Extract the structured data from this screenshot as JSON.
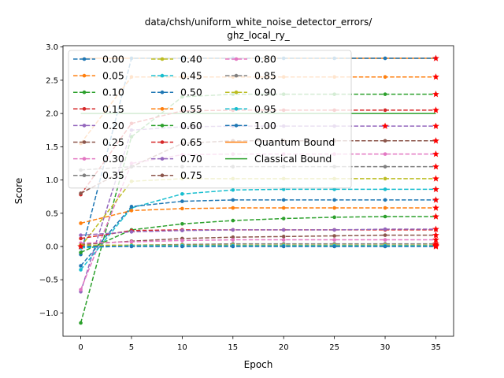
{
  "chart_data": {
    "type": "line",
    "title": "data/chsh/uniform_white_noise_detector_errors/\nghz_local_ry_",
    "xlabel": "Epoch",
    "ylabel": "Score",
    "xlim": [
      -1.75,
      36.75
    ],
    "ylim": [
      -1.35,
      3.02
    ],
    "xticks": [
      0,
      5,
      10,
      15,
      20,
      25,
      30,
      35
    ],
    "yticks": [
      -1.0,
      -0.5,
      0.0,
      0.5,
      1.0,
      1.5,
      2.0,
      2.5,
      3.0
    ],
    "x": [
      0,
      5,
      10,
      15,
      20,
      25,
      30,
      35
    ],
    "grid": false,
    "legend_position": "upper-left",
    "legend_columns": 3,
    "series": [
      {
        "name": "0.00",
        "color": "#1f77b4",
        "values": [
          -0.12,
          2.83,
          2.83,
          2.83,
          2.83,
          2.83,
          2.83,
          2.83
        ]
      },
      {
        "name": "0.05",
        "color": "#ff7f0e",
        "values": [
          1.55,
          2.55,
          2.55,
          2.55,
          2.55,
          2.55,
          2.55,
          2.55
        ]
      },
      {
        "name": "0.10",
        "color": "#2ca02c",
        "values": [
          -1.15,
          1.65,
          2.25,
          2.29,
          2.29,
          2.29,
          2.29,
          2.29
        ]
      },
      {
        "name": "0.15",
        "color": "#d62728",
        "values": [
          0.78,
          1.85,
          2.04,
          2.05,
          2.05,
          2.05,
          2.05,
          2.05
        ]
      },
      {
        "name": "0.20",
        "color": "#9467bd",
        "values": [
          -0.68,
          1.75,
          1.8,
          1.81,
          1.81,
          1.81,
          1.81,
          1.81
        ]
      },
      {
        "name": "0.25",
        "color": "#8c564b",
        "values": [
          0.8,
          1.2,
          1.55,
          1.59,
          1.59,
          1.59,
          1.59,
          1.59
        ]
      },
      {
        "name": "0.30",
        "color": "#e377c2",
        "values": [
          -0.65,
          1.25,
          1.38,
          1.39,
          1.39,
          1.39,
          1.39,
          1.39
        ]
      },
      {
        "name": "0.35",
        "color": "#7f7f7f",
        "values": [
          1.15,
          1.2,
          1.2,
          1.2,
          1.2,
          1.2,
          1.2,
          1.2
        ]
      },
      {
        "name": "0.40",
        "color": "#bcbd22",
        "values": [
          0.0,
          0.98,
          1.02,
          1.02,
          1.02,
          1.02,
          1.02,
          1.02
        ]
      },
      {
        "name": "0.45",
        "color": "#17becf",
        "values": [
          -0.35,
          0.58,
          0.79,
          0.85,
          0.86,
          0.86,
          0.86,
          0.86
        ]
      },
      {
        "name": "0.50",
        "color": "#1f77b4",
        "values": [
          -0.29,
          0.6,
          0.68,
          0.7,
          0.7,
          0.7,
          0.7,
          0.7
        ]
      },
      {
        "name": "0.55",
        "color": "#ff7f0e",
        "values": [
          0.35,
          0.54,
          0.57,
          0.58,
          0.58,
          0.58,
          0.58,
          0.58
        ]
      },
      {
        "name": "0.60",
        "color": "#2ca02c",
        "values": [
          -0.09,
          0.25,
          0.34,
          0.39,
          0.42,
          0.44,
          0.45,
          0.45
        ]
      },
      {
        "name": "0.65",
        "color": "#d62728",
        "values": [
          0.12,
          0.24,
          0.25,
          0.25,
          0.25,
          0.25,
          0.25,
          0.25
        ]
      },
      {
        "name": "0.70",
        "color": "#9467bd",
        "values": [
          0.17,
          0.22,
          0.24,
          0.25,
          0.25,
          0.25,
          0.26,
          0.26
        ]
      },
      {
        "name": "0.75",
        "color": "#8c564b",
        "values": [
          0.03,
          0.08,
          0.12,
          0.14,
          0.15,
          0.16,
          0.17,
          0.17
        ]
      },
      {
        "name": "0.80",
        "color": "#e377c2",
        "values": [
          0.05,
          0.07,
          0.09,
          0.1,
          0.1,
          0.1,
          0.1,
          0.1
        ]
      },
      {
        "name": "0.85",
        "color": "#7f7f7f",
        "values": [
          0.01,
          0.02,
          0.03,
          0.04,
          0.04,
          0.04,
          0.04,
          0.04
        ]
      },
      {
        "name": "0.90",
        "color": "#bcbd22",
        "values": [
          0.02,
          0.02,
          0.02,
          0.02,
          0.02,
          0.02,
          0.02,
          0.02
        ]
      },
      {
        "name": "0.95",
        "color": "#17becf",
        "values": [
          -0.02,
          0.01,
          0.01,
          0.01,
          0.01,
          0.01,
          0.01,
          0.01
        ]
      },
      {
        "name": "1.00",
        "color": "#1f77b4",
        "values": [
          0.0,
          0.0,
          0.0,
          0.0,
          0.0,
          0.0,
          0.0,
          0.0
        ]
      }
    ],
    "bounds": [
      {
        "name": "Quantum Bound",
        "color": "#ff7f0e",
        "value": 2.83
      },
      {
        "name": "Classical Bound",
        "color": "#2ca02c",
        "value": 2.0
      }
    ],
    "highlight_points": {
      "color": "#ff0000",
      "marker": "star",
      "points": [
        [
          0,
          0.0
        ],
        [
          30,
          1.81
        ],
        [
          35,
          2.83
        ],
        [
          35,
          2.55
        ],
        [
          35,
          2.29
        ],
        [
          35,
          2.05
        ],
        [
          35,
          1.81
        ],
        [
          35,
          1.59
        ],
        [
          35,
          1.39
        ],
        [
          35,
          1.2
        ],
        [
          35,
          1.02
        ],
        [
          35,
          0.86
        ],
        [
          35,
          0.7
        ],
        [
          35,
          0.58
        ],
        [
          35,
          0.45
        ],
        [
          35,
          0.26
        ],
        [
          35,
          0.17
        ],
        [
          35,
          0.1
        ],
        [
          35,
          0.04
        ],
        [
          35,
          0.02
        ],
        [
          35,
          0.01
        ],
        [
          35,
          0.0
        ]
      ]
    }
  }
}
